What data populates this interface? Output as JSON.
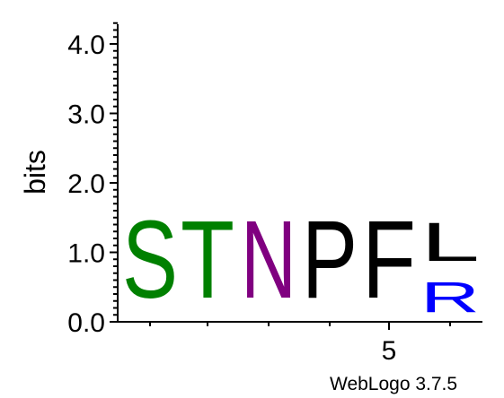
{
  "chart_data": {
    "type": "sequence-logo",
    "ylabel": "bits",
    "ylim": [
      0,
      4.32
    ],
    "y_ticks": [
      "0.0",
      "1.0",
      "2.0",
      "3.0",
      "4.0"
    ],
    "x_ticks": [
      "5"
    ],
    "positions": [
      {
        "index": 1,
        "stack": [
          {
            "letter": "S",
            "bits": 1.79,
            "color": "#008000"
          }
        ]
      },
      {
        "index": 2,
        "stack": [
          {
            "letter": "T",
            "bits": 1.79,
            "color": "#008000"
          }
        ]
      },
      {
        "index": 3,
        "stack": [
          {
            "letter": "N",
            "bits": 1.79,
            "color": "#800080"
          }
        ]
      },
      {
        "index": 4,
        "stack": [
          {
            "letter": "P",
            "bits": 1.79,
            "color": "#000000"
          }
        ]
      },
      {
        "index": 5,
        "stack": [
          {
            "letter": "F",
            "bits": 1.79,
            "color": "#000000"
          }
        ]
      },
      {
        "index": 6,
        "stack": [
          {
            "letter": "R",
            "bits": 0.7,
            "color": "#0000ff"
          },
          {
            "letter": "L",
            "bits": 0.89,
            "color": "#000000"
          }
        ]
      }
    ],
    "credit": "WebLogo 3.7.5"
  }
}
